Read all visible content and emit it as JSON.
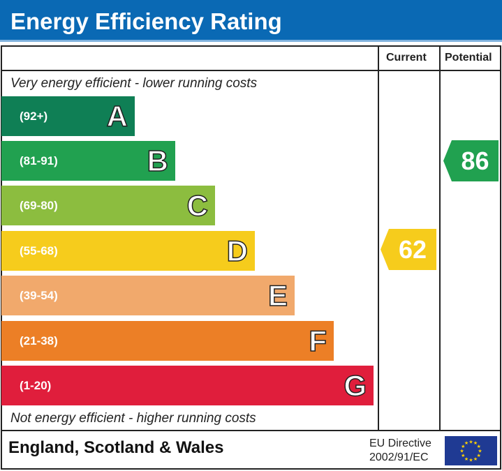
{
  "title": "Energy Efficiency Rating",
  "chart_data": {
    "type": "bar",
    "columns": [
      "Current",
      "Potential"
    ],
    "top_note": "Very energy efficient - lower running costs",
    "bottom_note": "Not energy efficient - higher running costs",
    "bands": [
      {
        "letter": "A",
        "range": "(92+)",
        "color": "#0f7f55"
      },
      {
        "letter": "B",
        "range": "(81-91)",
        "color": "#21a150"
      },
      {
        "letter": "C",
        "range": "(69-80)",
        "color": "#8cbd3f"
      },
      {
        "letter": "D",
        "range": "(55-68)",
        "color": "#f6cc1c"
      },
      {
        "letter": "E",
        "range": "(39-54)",
        "color": "#f1a96c"
      },
      {
        "letter": "F",
        "range": "(21-38)",
        "color": "#ec7f26"
      },
      {
        "letter": "G",
        "range": "(1-20)",
        "color": "#e01e3c"
      }
    ],
    "current": {
      "value": "62",
      "band": "D",
      "color": "#f6cc1c"
    },
    "potential": {
      "value": "86",
      "band": "B",
      "color": "#21a150"
    }
  },
  "footer": {
    "region": "England, Scotland & Wales",
    "directive_line1": "EU Directive",
    "directive_line2": "2002/91/EC"
  }
}
